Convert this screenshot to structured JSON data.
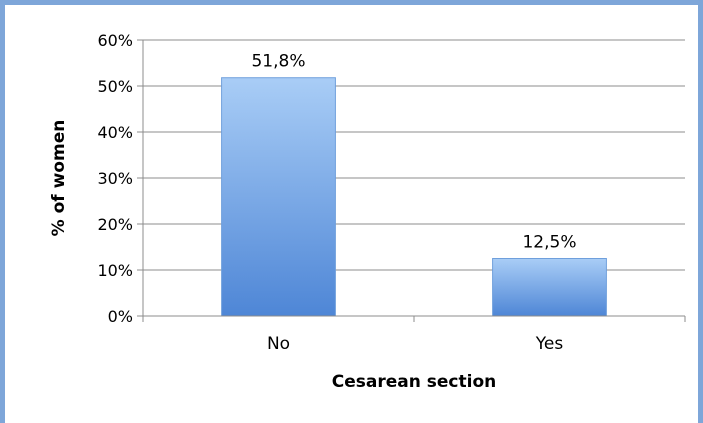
{
  "chart_data": {
    "type": "bar",
    "categories": [
      "No",
      "Yes"
    ],
    "values": [
      51.8,
      12.5
    ],
    "data_labels": [
      "51,8%",
      "12,5%"
    ],
    "xlabel": "Cesarean section",
    "ylabel": "% of women",
    "ylim": [
      0,
      60
    ],
    "yticks": [
      0,
      10,
      20,
      30,
      40,
      50,
      60
    ],
    "ytick_labels": [
      "0%",
      "10%",
      "20%",
      "30%",
      "40%",
      "50%",
      "60%"
    ],
    "grid": true,
    "bar_color": "#5b93db"
  }
}
